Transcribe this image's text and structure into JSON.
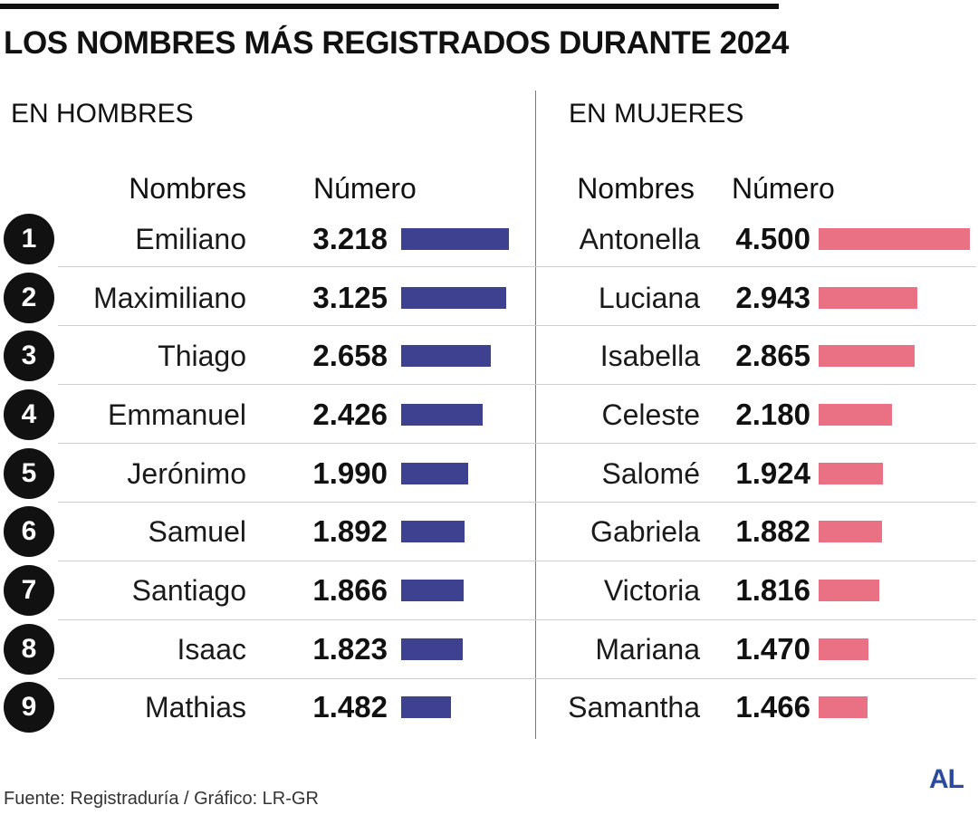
{
  "title": "LOS NOMBRES MÁS REGISTRADOS DURANTE 2024",
  "ranks": [
    "1",
    "2",
    "3",
    "4",
    "5",
    "6",
    "7",
    "8",
    "9"
  ],
  "colors": {
    "rank_circle": "#111111",
    "rank_text": "#ffffff",
    "row_divider": "#cfcfcf",
    "logo": "#2b4b9e"
  },
  "chart_data": [
    {
      "type": "bar",
      "orientation": "horizontal",
      "title": "EN HOMBRES",
      "xlabel": "Nombres",
      "ylabel": "Número",
      "categories": [
        "Emiliano",
        "Maximiliano",
        "Thiago",
        "Emmanuel",
        "Jerónimo",
        "Samuel",
        "Santiago",
        "Isaac",
        "Mathias"
      ],
      "values": [
        3218,
        3125,
        2658,
        2426,
        1990,
        1892,
        1866,
        1823,
        1482
      ],
      "value_labels": [
        "3.218",
        "3.125",
        "2.658",
        "2.426",
        "1.990",
        "1.892",
        "1.866",
        "1.823",
        "1.482"
      ],
      "color": "#3d4190"
    },
    {
      "type": "bar",
      "orientation": "horizontal",
      "title": "EN MUJERES",
      "xlabel": "Nombres",
      "ylabel": "Número",
      "categories": [
        "Antonella",
        "Luciana",
        "Isabella",
        "Celeste",
        "Salomé",
        "Gabriela",
        "Victoria",
        "Mariana",
        "Samantha"
      ],
      "values": [
        4500,
        2943,
        2865,
        2180,
        1924,
        1882,
        1816,
        1470,
        1466
      ],
      "value_labels": [
        "4.500",
        "2.943",
        "2.865",
        "2.180",
        "1.924",
        "1.882",
        "1.816",
        "1.470",
        "1.466"
      ],
      "color": "#ea7083"
    }
  ],
  "footer": {
    "source": "Fuente: Registraduría / Gráfico: LR-GR",
    "logo": "AL"
  }
}
